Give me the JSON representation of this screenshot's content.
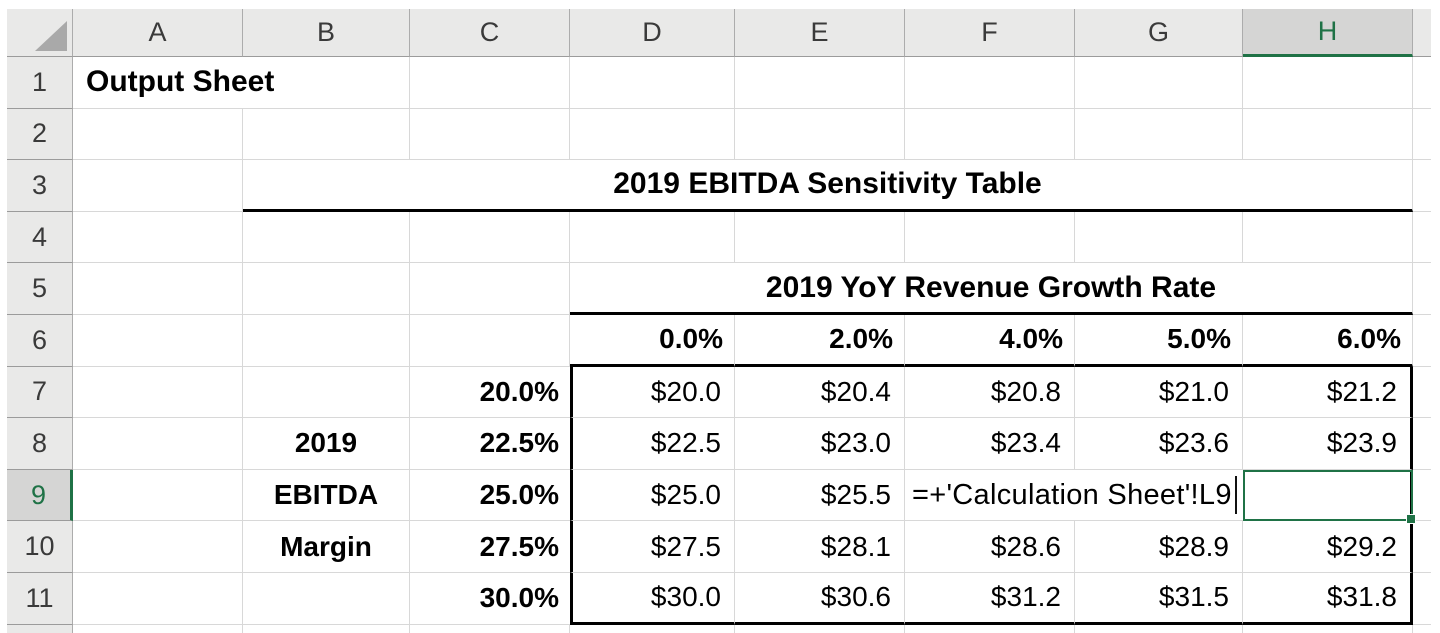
{
  "columns": [
    "A",
    "B",
    "C",
    "D",
    "E",
    "F",
    "G",
    "H"
  ],
  "row_numbers": [
    "1",
    "2",
    "3",
    "4",
    "5",
    "6",
    "7",
    "8",
    "9",
    "10",
    "11"
  ],
  "cells": {
    "a1": "Output Sheet",
    "b3_title": "2019 EBITDA Sensitivity Table",
    "d5_title": "2019 YoY Revenue Growth Rate",
    "growth_rates": {
      "d6": "0.0%",
      "e6": "2.0%",
      "f6": "4.0%",
      "g6": "5.0%",
      "h6": "6.0%"
    },
    "margin_labels": {
      "b8": "2019",
      "b9": "EBITDA",
      "b10": "Margin"
    },
    "margin_rates": {
      "c7": "20.0%",
      "c8": "22.5%",
      "c9": "25.0%",
      "c10": "27.5%",
      "c11": "30.0%"
    },
    "values": {
      "d7": "$20.0",
      "e7": "$20.4",
      "f7": "$20.8",
      "g7": "$21.0",
      "h7": "$21.2",
      "d8": "$22.5",
      "e8": "$23.0",
      "f8": "$23.4",
      "g8": "$23.6",
      "h8": "$23.9",
      "d9": "$25.0",
      "e9": "$25.5",
      "d10": "$27.5",
      "e10": "$28.1",
      "f10": "$28.6",
      "g10": "$28.9",
      "h10": "$29.2",
      "d11": "$30.0",
      "e11": "$30.6",
      "f11": "$31.2",
      "g11": "$31.5",
      "h11": "$31.8"
    },
    "f9_formula": "=+'Calculation Sheet'!L9"
  },
  "selection": {
    "active_column": "H",
    "active_row": "9",
    "active_cell": "H9"
  },
  "colors": {
    "accent_green": "#1F7246",
    "border_black": "#000000",
    "gridline": "#D8D8D8",
    "header_bg": "#E9E9E8",
    "active_header_bg": "#D5D5D4"
  }
}
